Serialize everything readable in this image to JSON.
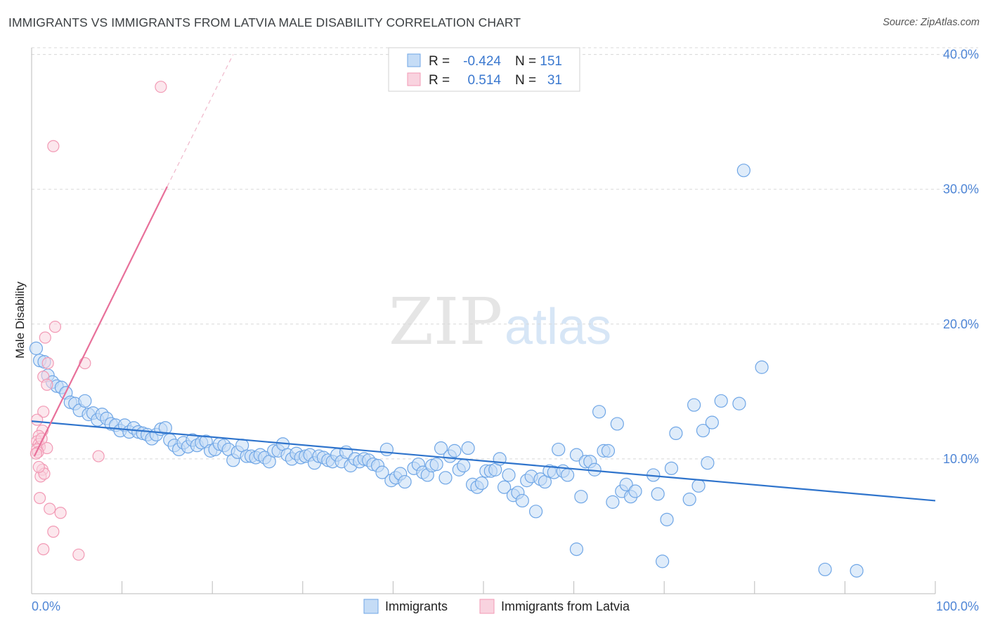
{
  "header": {
    "title": "IMMIGRANTS VS IMMIGRANTS FROM LATVIA MALE DISABILITY CORRELATION CHART",
    "source": "Source: ZipAtlas.com"
  },
  "stats_box": {
    "rows": [
      {
        "r_label": "R =",
        "r_value": "-0.424",
        "n_label": "N =",
        "n_value": "151"
      },
      {
        "r_label": "R =",
        "r_value": "0.514",
        "n_label": "N =",
        "n_value": "31"
      }
    ]
  },
  "watermark": {
    "zip": "ZIP",
    "atlas": "atlas"
  },
  "colors": {
    "blue": "#6fa6e6",
    "blue_fill": "#c5dcf6",
    "blue_line": "#2f74cc",
    "pink": "#f29ab5",
    "pink_fill": "#f9d3df",
    "pink_line": "#e8709a",
    "axis_text": "#4f86d6",
    "grid": "#d8d8d8"
  },
  "chart_data": {
    "type": "scatter",
    "title": "IMMIGRANTS VS IMMIGRANTS FROM LATVIA MALE DISABILITY CORRELATION CHART",
    "xlabel": "",
    "ylabel": "Male Disability",
    "xlim": [
      0,
      100
    ],
    "ylim": [
      0,
      40.5
    ],
    "x_tick_labels": [
      "0.0%",
      "100.0%"
    ],
    "y_ticks": [
      10,
      20,
      30,
      40
    ],
    "y_tick_labels": [
      "10.0%",
      "20.0%",
      "30.0%",
      "40.0%"
    ],
    "grid": true,
    "legend_position": "bottom-center",
    "series": [
      {
        "name": "Immigrants",
        "color": "#6fa6e6",
        "r": -0.424,
        "n": 151,
        "trend": {
          "x": [
            0,
            100
          ],
          "y": [
            12.8,
            6.9
          ]
        },
        "points": [
          [
            0.5,
            18.2
          ],
          [
            0.9,
            17.3
          ],
          [
            1.4,
            17.2
          ],
          [
            1.8,
            16.2
          ],
          [
            2.3,
            15.7
          ],
          [
            2.8,
            15.4
          ],
          [
            3.3,
            15.3
          ],
          [
            3.8,
            14.9
          ],
          [
            4.3,
            14.2
          ],
          [
            4.8,
            14.1
          ],
          [
            5.3,
            13.6
          ],
          [
            5.9,
            14.3
          ],
          [
            6.3,
            13.3
          ],
          [
            6.8,
            13.4
          ],
          [
            7.3,
            12.9
          ],
          [
            7.8,
            13.3
          ],
          [
            8.3,
            13.0
          ],
          [
            8.8,
            12.6
          ],
          [
            9.3,
            12.5
          ],
          [
            9.8,
            12.1
          ],
          [
            10.3,
            12.5
          ],
          [
            10.8,
            12.0
          ],
          [
            11.3,
            12.3
          ],
          [
            11.8,
            12.0
          ],
          [
            12.3,
            11.9
          ],
          [
            12.8,
            11.8
          ],
          [
            13.3,
            11.5
          ],
          [
            13.8,
            11.8
          ],
          [
            14.3,
            12.2
          ],
          [
            14.8,
            12.3
          ],
          [
            15.3,
            11.4
          ],
          [
            15.8,
            11.0
          ],
          [
            16.3,
            10.7
          ],
          [
            16.8,
            11.2
          ],
          [
            17.3,
            10.9
          ],
          [
            17.8,
            11.4
          ],
          [
            18.3,
            11.0
          ],
          [
            18.8,
            11.2
          ],
          [
            19.3,
            11.3
          ],
          [
            19.8,
            10.6
          ],
          [
            20.3,
            10.7
          ],
          [
            20.8,
            11.1
          ],
          [
            21.3,
            11.0
          ],
          [
            21.8,
            10.7
          ],
          [
            22.3,
            9.9
          ],
          [
            22.8,
            10.5
          ],
          [
            23.3,
            11.0
          ],
          [
            23.8,
            10.2
          ],
          [
            24.3,
            10.2
          ],
          [
            24.8,
            10.1
          ],
          [
            25.3,
            10.3
          ],
          [
            25.8,
            10.1
          ],
          [
            26.3,
            9.8
          ],
          [
            26.8,
            10.6
          ],
          [
            27.3,
            10.6
          ],
          [
            27.8,
            11.1
          ],
          [
            28.3,
            10.3
          ],
          [
            28.8,
            10.0
          ],
          [
            29.3,
            10.4
          ],
          [
            29.8,
            10.1
          ],
          [
            30.3,
            10.2
          ],
          [
            30.8,
            10.3
          ],
          [
            31.3,
            9.7
          ],
          [
            31.8,
            10.2
          ],
          [
            32.3,
            10.1
          ],
          [
            32.8,
            9.9
          ],
          [
            33.3,
            9.8
          ],
          [
            33.8,
            10.3
          ],
          [
            34.3,
            9.8
          ],
          [
            34.8,
            10.5
          ],
          [
            35.3,
            9.5
          ],
          [
            35.8,
            10.0
          ],
          [
            36.3,
            9.8
          ],
          [
            36.8,
            10.0
          ],
          [
            37.3,
            9.9
          ],
          [
            37.8,
            9.6
          ],
          [
            38.3,
            9.5
          ],
          [
            38.8,
            9.0
          ],
          [
            39.3,
            10.7
          ],
          [
            39.8,
            8.4
          ],
          [
            40.3,
            8.6
          ],
          [
            40.8,
            8.9
          ],
          [
            41.3,
            8.3
          ],
          [
            42.3,
            9.3
          ],
          [
            42.8,
            9.6
          ],
          [
            43.3,
            9.0
          ],
          [
            43.8,
            8.8
          ],
          [
            44.3,
            9.5
          ],
          [
            44.8,
            9.6
          ],
          [
            45.3,
            10.8
          ],
          [
            45.8,
            8.6
          ],
          [
            46.3,
            10.2
          ],
          [
            46.8,
            10.6
          ],
          [
            47.3,
            9.2
          ],
          [
            47.8,
            9.5
          ],
          [
            48.3,
            10.8
          ],
          [
            48.8,
            8.1
          ],
          [
            49.3,
            7.9
          ],
          [
            49.8,
            8.2
          ],
          [
            50.3,
            9.1
          ],
          [
            50.8,
            9.1
          ],
          [
            51.3,
            9.2
          ],
          [
            51.8,
            10.0
          ],
          [
            52.3,
            7.9
          ],
          [
            52.8,
            8.8
          ],
          [
            53.3,
            7.3
          ],
          [
            53.8,
            7.5
          ],
          [
            54.3,
            6.9
          ],
          [
            54.8,
            8.4
          ],
          [
            55.3,
            8.7
          ],
          [
            55.8,
            6.1
          ],
          [
            56.3,
            8.5
          ],
          [
            56.8,
            8.3
          ],
          [
            57.3,
            9.1
          ],
          [
            57.8,
            9.0
          ],
          [
            58.3,
            10.7
          ],
          [
            58.8,
            9.1
          ],
          [
            59.3,
            8.8
          ],
          [
            60.3,
            10.3
          ],
          [
            60.8,
            7.2
          ],
          [
            61.3,
            9.8
          ],
          [
            61.8,
            9.8
          ],
          [
            62.3,
            9.2
          ],
          [
            62.8,
            13.5
          ],
          [
            63.3,
            10.6
          ],
          [
            63.8,
            10.6
          ],
          [
            64.3,
            6.8
          ],
          [
            64.8,
            12.6
          ],
          [
            65.3,
            7.6
          ],
          [
            65.8,
            8.1
          ],
          [
            66.3,
            7.2
          ],
          [
            66.8,
            7.6
          ],
          [
            68.8,
            8.8
          ],
          [
            69.3,
            7.4
          ],
          [
            70.3,
            5.5
          ],
          [
            70.8,
            9.3
          ],
          [
            71.3,
            11.9
          ],
          [
            72.8,
            7.0
          ],
          [
            73.3,
            14.0
          ],
          [
            73.8,
            8.0
          ],
          [
            74.3,
            12.1
          ],
          [
            74.8,
            9.7
          ],
          [
            75.3,
            12.7
          ],
          [
            76.3,
            14.3
          ],
          [
            78.3,
            14.1
          ],
          [
            78.8,
            31.4
          ],
          [
            80.8,
            16.8
          ],
          [
            60.3,
            3.3
          ],
          [
            69.8,
            2.4
          ],
          [
            87.8,
            1.8
          ],
          [
            91.3,
            1.7
          ]
        ]
      },
      {
        "name": "Immigrants from Latvia",
        "color": "#f29ab5",
        "r": 0.514,
        "n": 31,
        "trend": {
          "x": [
            0.3,
            15.0
          ],
          "y": [
            10.2,
            30.2
          ]
        },
        "trend_dashed": {
          "x": [
            15.0,
            22.3
          ],
          "y": [
            30.2,
            40.0
          ]
        },
        "points": [
          [
            14.3,
            37.6
          ],
          [
            2.4,
            33.2
          ],
          [
            2.6,
            19.8
          ],
          [
            1.5,
            19.0
          ],
          [
            1.8,
            17.1
          ],
          [
            5.9,
            17.1
          ],
          [
            1.3,
            16.1
          ],
          [
            1.7,
            15.5
          ],
          [
            1.3,
            13.5
          ],
          [
            0.6,
            12.9
          ],
          [
            1.2,
            12.1
          ],
          [
            0.8,
            11.7
          ],
          [
            0.6,
            11.3
          ],
          [
            0.8,
            11.1
          ],
          [
            0.9,
            10.9
          ],
          [
            0.6,
            10.7
          ],
          [
            1.7,
            10.8
          ],
          [
            0.7,
            10.5
          ],
          [
            0.5,
            10.4
          ],
          [
            7.4,
            10.2
          ],
          [
            1.2,
            9.2
          ],
          [
            1.0,
            8.7
          ],
          [
            1.4,
            8.9
          ],
          [
            0.9,
            7.1
          ],
          [
            2.0,
            6.3
          ],
          [
            3.2,
            6.0
          ],
          [
            2.4,
            4.6
          ],
          [
            1.3,
            3.3
          ],
          [
            5.2,
            2.9
          ],
          [
            0.8,
            9.4
          ],
          [
            1.1,
            11.5
          ]
        ]
      }
    ]
  }
}
